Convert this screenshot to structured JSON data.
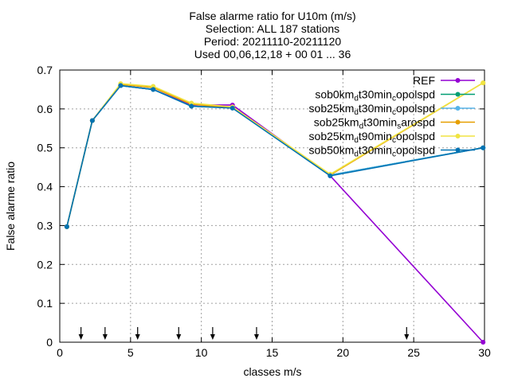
{
  "chart_data": {
    "type": "line",
    "title_lines": [
      "False alarme ratio  for U10m (m/s)",
      "Selection: ALL     187 stations",
      "Period: 20211110-20211120",
      "Used 00,06,12,18 + 00 01 ... 36"
    ],
    "xlabel": "classes m/s",
    "ylabel": "False alarme ratio",
    "xlim": [
      0,
      30
    ],
    "ylim": [
      0,
      0.7
    ],
    "xticks": [
      0,
      5,
      10,
      15,
      20,
      25,
      30
    ],
    "yticks": [
      0,
      0.1,
      0.2,
      0.3,
      0.4,
      0.5,
      0.6,
      0.7
    ],
    "grid": true,
    "legend_position": "top-right",
    "arrow_markers_x": [
      1.5,
      3.2,
      5.5,
      8.4,
      10.8,
      13.9,
      24.5
    ],
    "series": [
      {
        "name": "REF",
        "label_parts": [
          [
            "REF",
            ""
          ]
        ],
        "color": "#9400d3",
        "x": [
          0.5,
          2.3,
          4.3,
          6.6,
          9.3,
          12.2,
          19.1,
          29.9
        ],
        "y": [
          0.297,
          0.57,
          0.66,
          0.65,
          0.61,
          0.61,
          0.428,
          0.0
        ]
      },
      {
        "name": "sob0kmdt30mincopolspd",
        "label_parts": [
          [
            "sob0km",
            ""
          ],
          [
            "d",
            "sub"
          ],
          [
            "t30min",
            ""
          ],
          [
            "c",
            "sub"
          ],
          [
            "opolspd",
            ""
          ]
        ],
        "color": "#009e73",
        "x": [
          0.5,
          2.3,
          4.3,
          6.6,
          9.3,
          12.2,
          19.1,
          29.9
        ],
        "y": [
          0.297,
          0.57,
          0.66,
          0.65,
          0.607,
          0.603,
          0.43,
          0.5
        ]
      },
      {
        "name": "sob25kmdt30mincopolspd",
        "label_parts": [
          [
            "sob25km",
            ""
          ],
          [
            "d",
            "sub"
          ],
          [
            "t30min",
            ""
          ],
          [
            "c",
            "sub"
          ],
          [
            "opolspd",
            ""
          ]
        ],
        "color": "#56b4e9",
        "x": [
          0.5,
          2.3,
          4.3,
          6.6,
          9.3,
          12.2,
          19.1,
          29.9
        ],
        "y": [
          0.297,
          0.57,
          0.66,
          0.65,
          0.607,
          0.603,
          0.43,
          0.5
        ]
      },
      {
        "name": "sob25kmdt30minsarospd",
        "label_parts": [
          [
            "sob25km",
            ""
          ],
          [
            "d",
            "sub"
          ],
          [
            "t30min",
            ""
          ],
          [
            "s",
            "sub"
          ],
          [
            "arospd",
            ""
          ]
        ],
        "color": "#e69f00",
        "x": [
          0.5,
          2.3,
          4.3,
          6.6,
          9.3,
          12.2,
          19.1,
          29.9
        ],
        "y": [
          0.297,
          0.57,
          0.663,
          0.655,
          0.612,
          0.603,
          0.43,
          0.667
        ]
      },
      {
        "name": "sob25kmdt90mincopolspd",
        "label_parts": [
          [
            "sob25km",
            ""
          ],
          [
            "d",
            "sub"
          ],
          [
            "t90min",
            ""
          ],
          [
            "c",
            "sub"
          ],
          [
            "opolspd",
            ""
          ]
        ],
        "color": "#f0e442",
        "x": [
          0.5,
          2.3,
          4.3,
          6.6,
          9.3,
          12.2,
          19.1,
          29.9
        ],
        "y": [
          0.297,
          0.57,
          0.665,
          0.658,
          0.615,
          0.605,
          0.432,
          0.667
        ]
      },
      {
        "name": "sob50kmdt30mincopolspd",
        "label_parts": [
          [
            "sob50km",
            ""
          ],
          [
            "d",
            "sub"
          ],
          [
            "t30min",
            ""
          ],
          [
            "c",
            "sub"
          ],
          [
            "opolspd",
            ""
          ]
        ],
        "color": "#0072b2",
        "x": [
          0.5,
          2.3,
          4.3,
          6.6,
          9.3,
          12.2,
          19.1,
          29.9
        ],
        "y": [
          0.297,
          0.57,
          0.66,
          0.65,
          0.607,
          0.602,
          0.428,
          0.5
        ]
      }
    ]
  }
}
